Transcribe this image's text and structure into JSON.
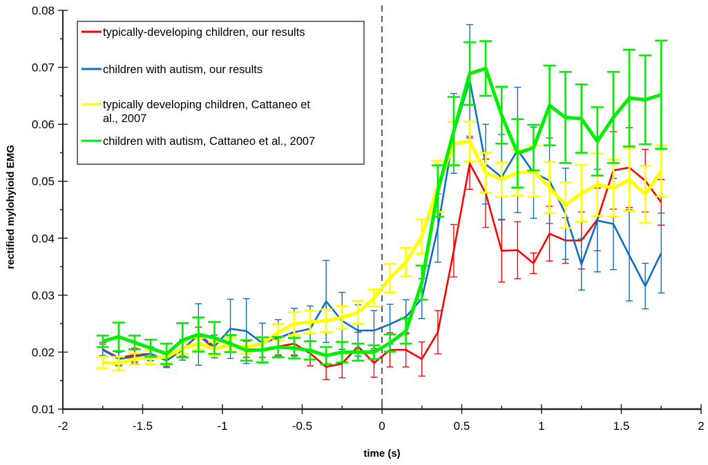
{
  "chart_data": {
    "type": "line",
    "title": "",
    "xlabel": "time (s)",
    "ylabel": "rectified mylohyioid EMG",
    "xlim": [
      -2,
      2
    ],
    "ylim": [
      0.01,
      0.08
    ],
    "x_major_ticks": [
      -2,
      -1.5,
      -1,
      -0.5,
      0,
      0.5,
      1,
      1.5,
      2
    ],
    "x_tick_labels": [
      "-2",
      "-1.5",
      "-1",
      "-0.5",
      "0",
      "0.5",
      "1",
      "1.5",
      "2"
    ],
    "x_minor_step": 0.25,
    "y_major_ticks": [
      0.01,
      0.02,
      0.03,
      0.04,
      0.05,
      0.06,
      0.07,
      0.08
    ],
    "y_tick_labels": [
      "0.01",
      "0.02",
      "0.03",
      "0.04",
      "0.05",
      "0.06",
      "0.07",
      "0.08"
    ],
    "y_minor_step": 0.005,
    "grid": false,
    "vertical_reference_line": {
      "x": 0,
      "style": "dashed",
      "color": "#333333"
    },
    "legend_position": "top-left",
    "x": [
      -1.75,
      -1.65,
      -1.55,
      -1.45,
      -1.35,
      -1.25,
      -1.15,
      -1.05,
      -0.95,
      -0.85,
      -0.75,
      -0.65,
      -0.55,
      -0.45,
      -0.35,
      -0.25,
      -0.15,
      -0.05,
      0.05,
      0.15,
      0.25,
      0.35,
      0.45,
      0.55,
      0.65,
      0.75,
      0.85,
      0.95,
      1.05,
      1.15,
      1.25,
      1.35,
      1.45,
      1.55,
      1.65,
      1.75
    ],
    "series": [
      {
        "name": "typically-developing children, our results",
        "color": "#ff0000",
        "line_width": "thin",
        "values": [
          0.0205,
          0.019,
          0.0195,
          0.0197,
          0.0187,
          0.0205,
          0.023,
          0.0206,
          0.0215,
          0.0205,
          0.0205,
          0.021,
          0.0215,
          0.0198,
          0.0174,
          0.018,
          0.021,
          0.0181,
          0.0204,
          0.0204,
          0.0188,
          0.0235,
          0.0378,
          0.0531,
          0.0479,
          0.0378,
          0.0379,
          0.0356,
          0.0408,
          0.0396,
          0.0396,
          0.0433,
          0.0519,
          0.0524,
          0.0501,
          0.0463
        ],
        "error": [
          0.0012,
          0.0012,
          0.0012,
          0.0012,
          0.0012,
          0.0012,
          0.0014,
          0.0012,
          0.0014,
          0.0014,
          0.0014,
          0.0015,
          0.002,
          0.0022,
          0.0022,
          0.0025,
          0.0025,
          0.0025,
          0.003,
          0.003,
          0.003,
          0.0038,
          0.0046,
          0.0045,
          0.006,
          0.0055,
          0.005,
          0.0018,
          0.0048,
          0.004,
          0.005,
          0.0055,
          0.0068,
          0.007,
          0.0055,
          0.004
        ]
      },
      {
        "name": "children with autism, our results",
        "color": "#0d6ec4",
        "line_width": "thin",
        "values": [
          0.0204,
          0.0188,
          0.0192,
          0.0197,
          0.0185,
          0.0204,
          0.0231,
          0.021,
          0.0241,
          0.0237,
          0.0216,
          0.0225,
          0.0235,
          0.0241,
          0.0289,
          0.0255,
          0.0238,
          0.0238,
          0.0249,
          0.0262,
          0.0294,
          0.0418,
          0.0584,
          0.0677,
          0.053,
          0.0507,
          0.0555,
          0.0515,
          0.0501,
          0.0443,
          0.0354,
          0.0431,
          0.0425,
          0.037,
          0.0316,
          0.0374
        ],
        "error": [
          0.001,
          0.0012,
          0.0012,
          0.0012,
          0.0012,
          0.0018,
          0.0054,
          0.002,
          0.0052,
          0.0057,
          0.0035,
          0.0032,
          0.0042,
          0.004,
          0.0072,
          0.005,
          0.0045,
          0.0035,
          0.0035,
          0.003,
          0.0035,
          0.006,
          0.007,
          0.0098,
          0.007,
          0.0075,
          0.011,
          0.008,
          0.0075,
          0.008,
          0.0045,
          0.009,
          0.008,
          0.008,
          0.004,
          0.007
        ]
      },
      {
        "name": "typically developing children, Cattaneo et al., 2007",
        "color": "#ffff00",
        "line_width": "thick",
        "values": [
          0.0182,
          0.018,
          0.0188,
          0.0191,
          0.0191,
          0.0207,
          0.0215,
          0.0206,
          0.0213,
          0.0209,
          0.0215,
          0.0235,
          0.025,
          0.0253,
          0.0255,
          0.0261,
          0.027,
          0.0295,
          0.033,
          0.0358,
          0.0403,
          0.0491,
          0.0566,
          0.057,
          0.0515,
          0.0503,
          0.0515,
          0.0518,
          0.0489,
          0.0458,
          0.0479,
          0.0494,
          0.0488,
          0.0503,
          0.0477,
          0.0518
        ],
        "error": [
          0.001,
          0.0012,
          0.001,
          0.0012,
          0.001,
          0.001,
          0.001,
          0.0012,
          0.0012,
          0.0012,
          0.0012,
          0.0014,
          0.002,
          0.002,
          0.002,
          0.002,
          0.002,
          0.0015,
          0.0025,
          0.0025,
          0.003,
          0.0045,
          0.0038,
          0.0035,
          0.0035,
          0.003,
          0.004,
          0.0045,
          0.0045,
          0.004,
          0.005,
          0.0055,
          0.005,
          0.0055,
          0.005,
          0.0045
        ]
      },
      {
        "name": "children with autism, Cattaneo et al., 2007",
        "color": "#00ee00",
        "line_width": "thick",
        "values": [
          0.0219,
          0.0227,
          0.0217,
          0.0207,
          0.0197,
          0.0221,
          0.0231,
          0.0225,
          0.0215,
          0.0203,
          0.0204,
          0.0209,
          0.0207,
          0.0203,
          0.0194,
          0.02,
          0.02,
          0.02,
          0.0216,
          0.0237,
          0.0322,
          0.0483,
          0.0588,
          0.0689,
          0.0698,
          0.0616,
          0.0549,
          0.0559,
          0.0633,
          0.0612,
          0.061,
          0.057,
          0.0612,
          0.0646,
          0.0643,
          0.0652
        ],
        "error": [
          0.001,
          0.0025,
          0.0012,
          0.0015,
          0.0018,
          0.003,
          0.003,
          0.0028,
          0.0015,
          0.0018,
          0.0022,
          0.0018,
          0.0018,
          0.0016,
          0.0015,
          0.0018,
          0.0015,
          0.0012,
          0.0015,
          0.0022,
          0.003,
          0.0045,
          0.006,
          0.0055,
          0.0048,
          0.005,
          0.006,
          0.004,
          0.007,
          0.008,
          0.006,
          0.006,
          0.008,
          0.0085,
          0.0078,
          0.0095
        ]
      }
    ]
  },
  "legend": {
    "items": [
      {
        "lines": [
          "typically-developing children, our results"
        ],
        "color": "#ff0000"
      },
      {
        "lines": [
          "children with autism, our results"
        ],
        "color": "#0d6ec4"
      },
      {
        "lines": [
          "typically developing children, Cattaneo et",
          "al., 2007"
        ],
        "color": "#ffff00"
      },
      {
        "lines": [
          "children with autism, Cattaneo et al., 2007"
        ],
        "color": "#00ee00"
      }
    ]
  }
}
